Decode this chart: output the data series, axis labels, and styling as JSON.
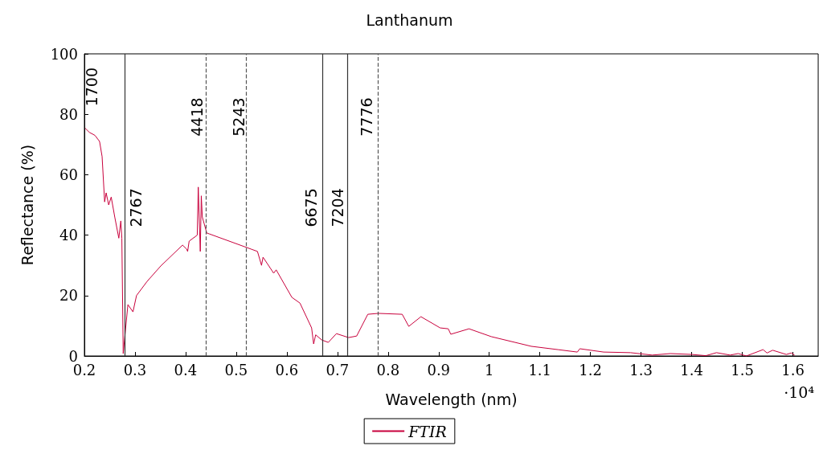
{
  "chart_data": {
    "type": "line",
    "title": "Lanthanum",
    "xlabel": "Wavelength (nm)",
    "ylabel": "Reflectance (%)",
    "xlim": [
      0.2,
      1.65
    ],
    "ylim": [
      0,
      100
    ],
    "xticks": [
      0.2,
      0.3,
      0.4,
      0.5,
      0.6,
      0.7,
      0.8,
      0.9,
      1,
      1.1,
      1.2,
      1.3,
      1.4,
      1.5,
      1.6
    ],
    "yticks": [
      0,
      20,
      40,
      60,
      80,
      100
    ],
    "grid": false,
    "legend": "bottom",
    "marker": "none",
    "line_style": "solid",
    "annotations": [
      "1700",
      "·10⁴",
      {
        "text": "2767",
        "x": 0.2767,
        "y": 40
      },
      {
        "text": "4418",
        "x": 0.4418,
        "y": 70
      },
      {
        "text": "5243",
        "x": 0.5243,
        "y": 70
      },
      {
        "text": "6675",
        "x": 0.6675,
        "y": 40
      },
      {
        "text": "7204",
        "x": 0.7204,
        "y": 40
      },
      {
        "text": "7776",
        "x": 0.7776,
        "y": 70
      }
    ],
    "ref_lines": [
      {
        "axis": "x",
        "value": 0.2767,
        "color": "#333333",
        "line_style": "solid"
      },
      {
        "axis": "x",
        "value": 0.4418,
        "color": "#555555",
        "line_style": "dashed"
      },
      {
        "axis": "x",
        "value": 0.5243,
        "color": "#555555",
        "line_style": "dashed"
      },
      {
        "axis": "x",
        "value": 0.6675,
        "color": "#333333",
        "line_style": "solid"
      },
      {
        "axis": "x",
        "value": 0.7204,
        "color": "#333333",
        "line_style": "solid"
      },
      {
        "axis": "x",
        "value": 0.7776,
        "color": "#555555",
        "line_style": "dashed"
      }
    ],
    "series": [
      {
        "name": "FTIR",
        "color": "#c8003c",
        "x": [
          0.202,
          0.21,
          0.221,
          0.23,
          0.235,
          0.24,
          0.243,
          0.248,
          0.253,
          0.26,
          0.268,
          0.272,
          0.274,
          0.2767,
          0.286,
          0.296,
          0.303,
          0.324,
          0.351,
          0.394,
          0.402,
          0.404,
          0.407,
          0.423,
          0.425,
          0.429,
          0.431,
          0.433,
          0.4418,
          0.447,
          0.529,
          0.542,
          0.55,
          0.553,
          0.574,
          0.579,
          0.61,
          0.626,
          0.649,
          0.653,
          0.657,
          0.669,
          0.682,
          0.698,
          0.722,
          0.738,
          0.76,
          0.781,
          0.828,
          0.841,
          0.865,
          0.903,
          0.919,
          0.924,
          0.96,
          1.004,
          1.083,
          1.136,
          1.174,
          1.179,
          1.226,
          1.279,
          1.322,
          1.358,
          1.401,
          1.428,
          1.449,
          1.476,
          1.492,
          1.508,
          1.541,
          1.549,
          1.56,
          1.587,
          1.597,
          1.603
        ],
        "values": [
          75.3,
          74,
          73,
          71,
          66,
          51,
          54,
          50,
          52.6,
          46,
          39,
          44.7,
          39,
          0.8,
          17,
          14.6,
          20,
          24.7,
          29.8,
          36.7,
          35.4,
          34.6,
          38,
          40,
          55.9,
          34.6,
          53,
          46,
          40.7,
          40.4,
          35.4,
          34.6,
          30,
          32.7,
          27.4,
          28.5,
          19.4,
          17.5,
          9.3,
          4,
          7,
          5.3,
          4.5,
          7.4,
          6.1,
          6.6,
          13.8,
          14.1,
          13.8,
          9.8,
          13,
          9.3,
          9,
          7.2,
          9,
          6.4,
          3.2,
          2.1,
          1.3,
          2.4,
          1.3,
          1.1,
          0.3,
          0.8,
          0.5,
          0.1,
          1.1,
          0.3,
          0.8,
          0,
          2.1,
          1,
          1.9,
          0.5,
          1,
          0.3
        ]
      }
    ]
  }
}
